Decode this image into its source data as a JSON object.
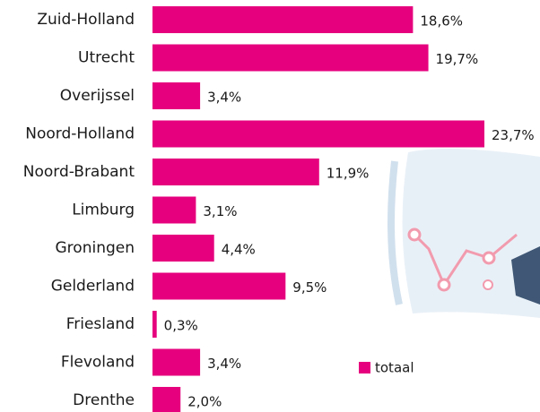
{
  "chart_data": {
    "type": "barh",
    "categories": [
      "Zuid-Holland",
      "Utrecht",
      "Overijssel",
      "Noord-Holland",
      "Noord-Brabant",
      "Limburg",
      "Groningen",
      "Gelderland",
      "Friesland",
      "Flevoland",
      "Drenthe"
    ],
    "series": [
      {
        "name": "totaal",
        "color": "#e6007e",
        "values": [
          18.6,
          19.7,
          3.4,
          23.7,
          11.9,
          3.1,
          4.4,
          9.5,
          0.3,
          3.4,
          2.0
        ],
        "value_labels": [
          "18,6%",
          "19,7%",
          "3,4%",
          "23,7%",
          "11,9%",
          "3,1%",
          "4,4%",
          "9,5%",
          "0,3%",
          "3,4%",
          "2,0%"
        ]
      }
    ]
  }
}
